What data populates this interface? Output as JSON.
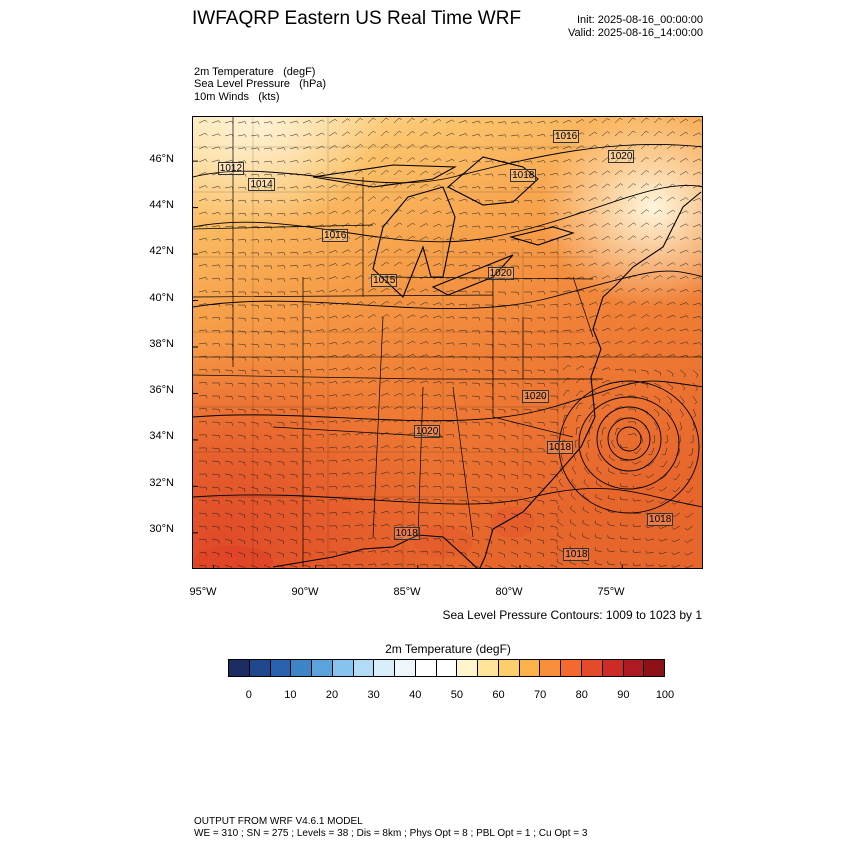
{
  "title": "IWFAQRP Eastern US Real Time WRF",
  "init": "Init: 2025-08-16_00:00:00",
  "valid": "Valid: 2025-08-16_14:00:00",
  "fields": [
    {
      "name": "2m Temperature",
      "units": "(degF)"
    },
    {
      "name": "Sea Level Pressure",
      "units": "(hPa)"
    },
    {
      "name": "10m Winds",
      "units": "(kts)"
    }
  ],
  "map": {
    "lat_labels": [
      "46°N",
      "44°N",
      "42°N",
      "40°N",
      "38°N",
      "36°N",
      "34°N",
      "32°N",
      "30°N"
    ],
    "lon_labels": [
      "95°W",
      "90°W",
      "85°W",
      "80°W",
      "75°W"
    ],
    "pressure_labels": [
      {
        "text": "1016",
        "lon": -77.8,
        "lat": 47.1
      },
      {
        "text": "1020",
        "lon": -75.1,
        "lat": 46.2
      },
      {
        "text": "1012",
        "lon": -94.2,
        "lat": 45.7
      },
      {
        "text": "1014",
        "lon": -92.7,
        "lat": 45.0
      },
      {
        "text": "1018",
        "lon": -79.9,
        "lat": 45.4
      },
      {
        "text": "1016",
        "lon": -89.1,
        "lat": 42.8
      },
      {
        "text": "1015",
        "lon": -86.7,
        "lat": 40.9
      },
      {
        "text": "1020",
        "lon": -81.0,
        "lat": 41.2
      },
      {
        "text": "1020",
        "lon": -79.3,
        "lat": 35.9
      },
      {
        "text": "1020",
        "lon": -84.6,
        "lat": 34.4
      },
      {
        "text": "1018",
        "lon": -78.1,
        "lat": 33.7
      },
      {
        "text": "1018",
        "lon": -73.2,
        "lat": 30.6
      },
      {
        "text": "1018",
        "lon": -77.3,
        "lat": 29.1
      },
      {
        "text": "1018",
        "lon": -85.6,
        "lat": 30.0
      }
    ]
  },
  "contour_info": "Sea Level Pressure Contours: 1009 to 1023 by 1",
  "colorbar": {
    "title": "2m Temperature  (degF)",
    "colors": [
      "#1b2c62",
      "#21478f",
      "#2a63ad",
      "#3d85c6",
      "#5aa3dc",
      "#86c4ef",
      "#b1dcf8",
      "#d9eefb",
      "#eef7fd",
      "#ffffff",
      "#ffffff",
      "#fff4cc",
      "#fee59a",
      "#fdcf6c",
      "#fdb14a",
      "#f98f3a",
      "#f36a2e",
      "#e44b2a",
      "#cc2b26",
      "#ad1a22",
      "#8e1117"
    ],
    "ticks": [
      "0",
      "10",
      "20",
      "30",
      "40",
      "50",
      "60",
      "70",
      "80",
      "90",
      "100"
    ]
  },
  "footer": {
    "line1": "OUTPUT FROM WRF V4.6.1 MODEL",
    "line2": "WE = 310 ; SN = 275 ; Levels = 38 ; Dis = 8km ; Phys Opt = 8 ; PBL Opt = 1 ; Cu Opt = 3"
  }
}
